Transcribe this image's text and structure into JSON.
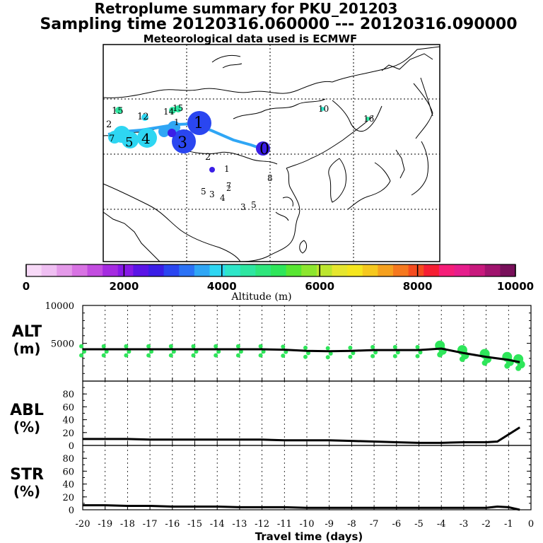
{
  "header": {
    "title": "Retroplume summary for PKU_201203",
    "sampling": "Sampling time   20120316.060000 --- 20120316.090000",
    "met": "Meteorological data used is ECMWF"
  },
  "colorbar": {
    "title": "Altitude (m)",
    "ticks": [
      "0",
      "2000",
      "4000",
      "6000",
      "8000",
      "10000"
    ],
    "colors": [
      "#f7d9f7",
      "#efbff2",
      "#e49ae9",
      "#d873e3",
      "#c34de0",
      "#a52be0",
      "#8719e6",
      "#5a14e6",
      "#3a1ee6",
      "#2a46f0",
      "#2b72f5",
      "#2fa6f5",
      "#2ed6f2",
      "#2ee6c9",
      "#2ee6a1",
      "#2ee67c",
      "#2ee65a",
      "#58e632",
      "#8ce62e",
      "#bce62e",
      "#e6e62e",
      "#f5e61e",
      "#f5c81e",
      "#f5a01e",
      "#f5781e",
      "#f54b1e",
      "#f51e32",
      "#f51e78",
      "#e61e8c",
      "#c8197d",
      "#a0146e",
      "#78105a"
    ]
  },
  "map": {
    "labels": [
      {
        "t": "15"
      },
      {
        "t": "12"
      },
      {
        "t": "14"
      },
      {
        "t": "15"
      },
      {
        "t": "1"
      },
      {
        "t": "2"
      },
      {
        "t": "7"
      },
      {
        "t": "5"
      },
      {
        "t": "4"
      },
      {
        "t": "1"
      },
      {
        "t": "3"
      },
      {
        "t": "0"
      },
      {
        "t": "2"
      },
      {
        "t": "1"
      },
      {
        "t": "8"
      },
      {
        "t": "5"
      },
      {
        "t": "3"
      },
      {
        "t": "4"
      },
      {
        "t": "7"
      },
      {
        "t": "2"
      },
      {
        "t": "3"
      },
      {
        "t": "5"
      },
      {
        "t": "10"
      },
      {
        "t": "16"
      }
    ]
  },
  "chart_data": [
    {
      "type": "line",
      "title": "ALT",
      "ylabel": "ALT\n(m)",
      "ylabel_line1": "ALT",
      "ylabel_line2": "(m)",
      "ylim": [
        0,
        10000
      ],
      "yticks": [
        "10000",
        "5000"
      ],
      "x": [
        -20,
        -19,
        -18,
        -17,
        -16,
        -15,
        -14,
        -13,
        -12,
        -11,
        -10,
        -9,
        -8,
        -7,
        -6,
        -5,
        -4,
        -3,
        -2,
        -1,
        -0.5
      ],
      "values": [
        4200,
        4200,
        4200,
        4200,
        4200,
        4200,
        4200,
        4200,
        4200,
        4150,
        4000,
        3950,
        4000,
        4100,
        4100,
        4100,
        4300,
        3700,
        3200,
        2800,
        2500
      ]
    },
    {
      "type": "line",
      "title": "ABL",
      "ylabel_line1": "ABL",
      "ylabel_line2": "(%)",
      "ylim": [
        0,
        100
      ],
      "yticks": [
        "80",
        "60",
        "40",
        "20",
        "0"
      ],
      "x": [
        -20,
        -19,
        -18,
        -17,
        -16,
        -15,
        -14,
        -13,
        -12,
        -11,
        -10,
        -9,
        -8,
        -7,
        -6,
        -5,
        -4,
        -3,
        -2,
        -1.5,
        -0.5
      ],
      "values": [
        10,
        10,
        10,
        9,
        9,
        9,
        9,
        9,
        9,
        8,
        8,
        8,
        7,
        6,
        5,
        4,
        4,
        5,
        5,
        6,
        28
      ]
    },
    {
      "type": "line",
      "title": "STR",
      "ylabel_line1": "STR",
      "ylabel_line2": "(%)",
      "ylim": [
        0,
        100
      ],
      "yticks": [
        "80",
        "60",
        "40",
        "20",
        "0"
      ],
      "x": [
        -20,
        -19,
        -18,
        -17,
        -16,
        -15,
        -14,
        -13,
        -12,
        -11,
        -10,
        -9,
        -8,
        -7,
        -6,
        -5,
        -4,
        -3,
        -2,
        -1.5,
        -1,
        -0.5
      ],
      "values": [
        7,
        7,
        6,
        6,
        5,
        5,
        5,
        4,
        4,
        4,
        3,
        3,
        3,
        3,
        3,
        3,
        3,
        3,
        3,
        5,
        4,
        0
      ]
    }
  ],
  "xaxis": {
    "label": "Travel time (days)",
    "ticks": [
      "-20",
      "-19",
      "-18",
      "-17",
      "-16",
      "-15",
      "-14",
      "-13",
      "-12",
      "-11",
      "-10",
      "-9",
      "-8",
      "-7",
      "-6",
      "-5",
      "-4",
      "-3",
      "-2",
      "-1",
      "0"
    ]
  }
}
